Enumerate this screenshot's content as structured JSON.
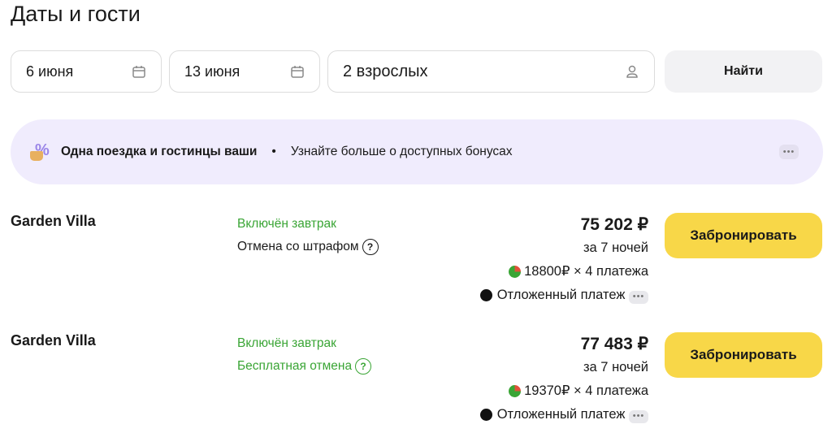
{
  "title": "Даты и гости",
  "search": {
    "checkin": "6 июня",
    "checkout": "13 июня",
    "guests": "2 взрослых",
    "find_label": "Найти"
  },
  "banner": {
    "headline": "Одна поездка и гостинцы ваши",
    "separator": "•",
    "link": "Узнайте больше о доступных бонусах",
    "more": "•••"
  },
  "offers": [
    {
      "name": "Garden Villa",
      "meal": "Включён завтрак",
      "cancel": "Отмена со штрафом",
      "cancel_free": false,
      "price": "75 202 ₽",
      "nights": "за 7 ночей",
      "installment": "18800₽ × 4 платежа",
      "deferred": "Отложенный платеж",
      "more": "•••",
      "book_label": "Забронировать"
    },
    {
      "name": "Garden Villa",
      "meal": "Включён завтрак",
      "cancel": "Бесплатная отмена",
      "cancel_free": true,
      "price": "77 483 ₽",
      "nights": "за 7 ночей",
      "installment": "19370₽ × 4 платежа",
      "deferred": "Отложенный платеж",
      "more": "•••",
      "book_label": "Забронировать"
    }
  ],
  "colors": {
    "accent": "#f8d748",
    "green": "#3aa535",
    "banner_bg": "#f0ecfd"
  }
}
